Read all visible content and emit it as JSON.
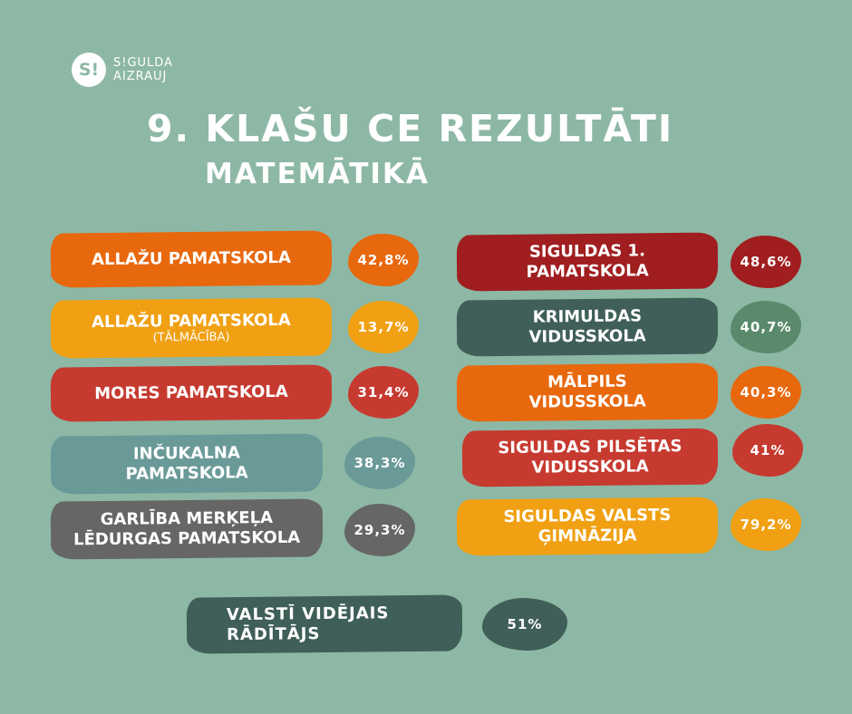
{
  "logo": {
    "mark": "S!",
    "line1": "S!GULDA",
    "line2": "AIZRAUJ"
  },
  "title": "9. KLAŠU CE REZULTĀTI",
  "subtitle": "MATEMĀTIKĀ",
  "colors": {
    "background": "#8db8a5",
    "orange": "#e8680e",
    "yellow": "#f0a012",
    "red": "#c63a30",
    "teal": "#6a9a98",
    "gray": "#666666",
    "darkred": "#a01e20",
    "darkgreen": "#3f5f58"
  },
  "schools": [
    {
      "name": "ALLAŽU PAMATSKOLA",
      "note": "",
      "value": "42,8%"
    },
    {
      "name": "ALLAŽU PAMATSKOLA",
      "note": "(TĀLMĀCĪBA)",
      "value": "13,7%"
    },
    {
      "name": "MORES PAMATSKOLA",
      "note": "",
      "value": "31,4%"
    },
    {
      "name": "INČUKALNA PAMATSKOLA",
      "note": "",
      "value": "38,3%"
    },
    {
      "name": "GARLĪBA MERĶEĻA LĒDURGAS PAMATSKOLA",
      "note": "",
      "value": "29,3%"
    },
    {
      "name": "SIGULDAS 1. PAMATSKOLA",
      "note": "",
      "value": "48,6%"
    },
    {
      "name": "KRIMULDAS VIDUSSKOLA",
      "note": "",
      "value": "40,7%"
    },
    {
      "name": "MĀLPILS VIDUSSKOLA",
      "note": "",
      "value": "40,3%"
    },
    {
      "name": "SIGULDAS PILSĒTAS VIDUSSKOLA",
      "note": "",
      "value": "41%"
    },
    {
      "name": "SIGULDAS VALSTS ĢIMNĀZIJA",
      "note": "",
      "value": "79,2%"
    }
  ],
  "national": {
    "label": "VALSTĪ VIDĒJAIS RĀDĪTĀJS",
    "value": "51%"
  }
}
